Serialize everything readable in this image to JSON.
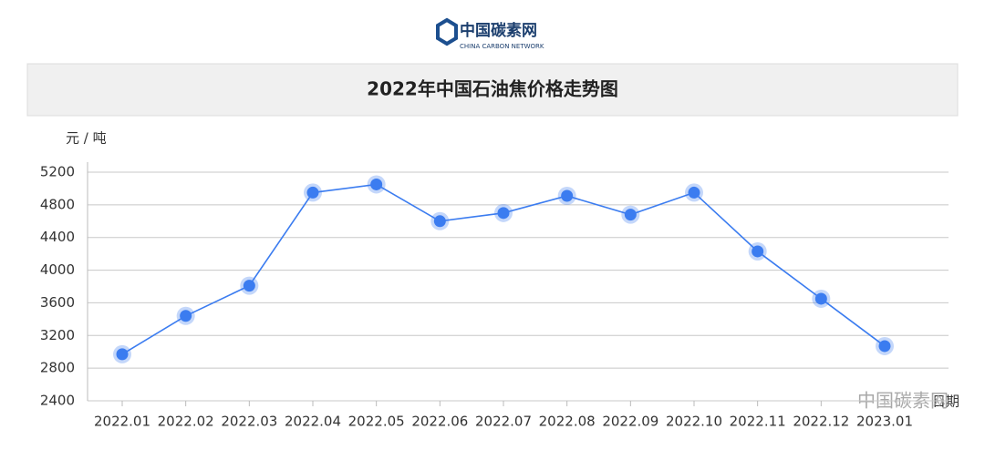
{
  "logo": {
    "name": "中国碳素网",
    "subtitle": "CHINA CARBON NETWORK"
  },
  "chart_data": {
    "type": "line",
    "title": "2022年中国石油焦价格走势图",
    "y_label": "元 / 吨",
    "x_label": "日期",
    "categories": [
      "2022.01",
      "2022.02",
      "2022.03",
      "2022.04",
      "2022.05",
      "2022.06",
      "2022.07",
      "2022.08",
      "2022.09",
      "2022.10",
      "2022.11",
      "2022.12",
      "2023.01"
    ],
    "series": [
      {
        "name": "石油焦价格",
        "color": "#3b7cf0",
        "values": [
          2970,
          3440,
          3810,
          4950,
          5050,
          4600,
          4700,
          4910,
          4680,
          4950,
          4230,
          3650,
          3070
        ]
      }
    ],
    "ylim": [
      2400,
      5200
    ],
    "yticks": [
      2400,
      2800,
      3200,
      3600,
      4000,
      4400,
      4800,
      5200
    ],
    "grid": true
  },
  "watermark": "中国碳素网"
}
